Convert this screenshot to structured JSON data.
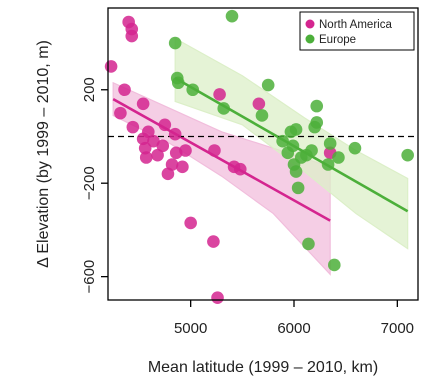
{
  "chart_data": {
    "type": "scatter",
    "xlabel": "Mean latitude (1999 – 2010, km)",
    "ylabel": "Δ Elevation (by 1999 – 2010, m)",
    "xlim": [
      4200,
      7200
    ],
    "ylim": [
      -700,
      550
    ],
    "x_ticks": [
      5000,
      6000,
      7000
    ],
    "y_ticks": [
      200,
      -200,
      -600
    ],
    "x_tick_labels": [
      "5000",
      "6000",
      "7000"
    ],
    "y_tick_labels": [
      "200",
      "−200",
      "−600"
    ],
    "reference_line_y": 0,
    "grid": false,
    "legend_position": "top-right",
    "series": [
      {
        "name": "North America",
        "color": "#d4258f",
        "band_color": "#f1bddc",
        "points": [
          [
            4400,
            490
          ],
          [
            4430,
            460
          ],
          [
            4430,
            430
          ],
          [
            4230,
            300
          ],
          [
            4360,
            200
          ],
          [
            4320,
            100
          ],
          [
            4540,
            140
          ],
          [
            4440,
            40
          ],
          [
            4750,
            50
          ],
          [
            4590,
            20
          ],
          [
            4540,
            -10
          ],
          [
            4640,
            -20
          ],
          [
            4850,
            10
          ],
          [
            4730,
            -40
          ],
          [
            4560,
            -50
          ],
          [
            4860,
            -70
          ],
          [
            4950,
            -60
          ],
          [
            4680,
            -80
          ],
          [
            4820,
            -120
          ],
          [
            4920,
            -130
          ],
          [
            4780,
            -160
          ],
          [
            4570,
            -90
          ],
          [
            5230,
            -60
          ],
          [
            5000,
            -370
          ],
          [
            5220,
            -450
          ],
          [
            5260,
            -690
          ],
          [
            5280,
            180
          ],
          [
            5420,
            -130
          ],
          [
            5480,
            -140
          ],
          [
            5660,
            140
          ],
          [
            6350,
            -70
          ]
        ],
        "fit_line": [
          [
            4250,
            160
          ],
          [
            6350,
            -360
          ]
        ],
        "ci_band": {
          "x": [
            4250,
            4800,
            5300,
            5800,
            6350
          ],
          "upper": [
            230,
            120,
            20,
            -50,
            -130
          ],
          "lower": [
            90,
            -30,
            -170,
            -330,
            -590
          ]
        }
      },
      {
        "name": "Europe",
        "color": "#4caf3a",
        "band_color": "#dcefc8",
        "points": [
          [
            4850,
            400
          ],
          [
            5400,
            515
          ],
          [
            4870,
            250
          ],
          [
            4880,
            230
          ],
          [
            5020,
            200
          ],
          [
            5320,
            120
          ],
          [
            5690,
            90
          ],
          [
            5750,
            220
          ],
          [
            5890,
            -20
          ],
          [
            5940,
            -70
          ],
          [
            5970,
            20
          ],
          [
            6020,
            30
          ],
          [
            6000,
            -120
          ],
          [
            6020,
            -150
          ],
          [
            6040,
            -220
          ],
          [
            6120,
            -80
          ],
          [
            6170,
            -60
          ],
          [
            6200,
            40
          ],
          [
            6220,
            60
          ],
          [
            6220,
            130
          ],
          [
            6350,
            -30
          ],
          [
            6330,
            -120
          ],
          [
            6430,
            -90
          ],
          [
            6590,
            -50
          ],
          [
            6140,
            -460
          ],
          [
            6390,
            -550
          ],
          [
            7100,
            -80
          ],
          [
            6070,
            -90
          ],
          [
            5990,
            -40
          ]
        ],
        "fit_line": [
          [
            4850,
            250
          ],
          [
            7100,
            -320
          ]
        ],
        "ci_band": {
          "x": [
            4850,
            5500,
            6100,
            6600,
            7100
          ],
          "upper": [
            420,
            260,
            80,
            -60,
            -180
          ],
          "lower": [
            150,
            50,
            -150,
            -330,
            -480
          ]
        }
      }
    ]
  }
}
